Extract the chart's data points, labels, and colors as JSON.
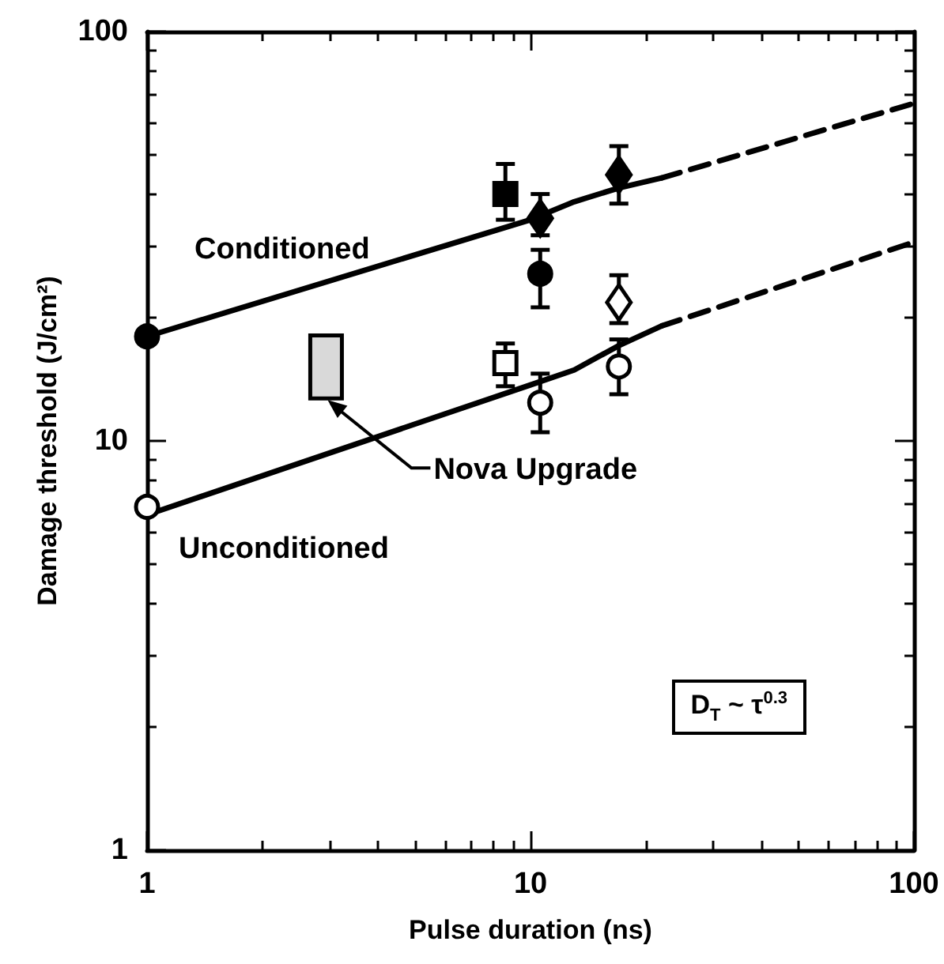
{
  "chart_data": {
    "type": "scatter",
    "xlabel": "Pulse duration (ns)",
    "ylabel": "Damage threshold (J/cm²)",
    "xlim": [
      1,
      100
    ],
    "ylim": [
      1,
      100
    ],
    "xticks": [
      1,
      10,
      100
    ],
    "yticks": [
      1,
      10,
      100
    ],
    "log": "xy",
    "annotations": [
      {
        "text": "Nova Upgrade",
        "x": 2.93,
        "y": 12.7
      },
      "D$_{T}$ ~ τ$^{0.3}$"
    ],
    "series": [
      {
        "name": "Conditioned",
        "type": "line",
        "line_style": "solid",
        "color": "#000000",
        "x": [
          1,
          10,
          13,
          17,
          22
        ],
        "values": [
          18,
          34.7,
          38.4,
          41.5,
          43.9
        ]
      },
      {
        "type": "line",
        "line_style": "dashed",
        "color": "#000000",
        "x": [
          22,
          100
        ],
        "values": [
          43.9,
          66.8
        ]
      },
      {
        "name": "Unconditioned",
        "type": "line",
        "line_style": "solid",
        "color": "#000000",
        "x": [
          1,
          10,
          13,
          17,
          22
        ],
        "values": [
          6.6,
          13.7,
          14.9,
          17.1,
          19.1
        ]
      },
      {
        "type": "line",
        "line_style": "dashed",
        "color": "#000000",
        "x": [
          22,
          100
        ],
        "values": [
          19.1,
          30.6
        ]
      },
      {
        "marker": "circle",
        "color": "#000000",
        "x": [
          1,
          10.6
        ],
        "values": [
          18,
          25.6
        ],
        "errors": [
          null,
          [
            21.2,
            29.3
          ]
        ]
      },
      {
        "marker": "square",
        "color": "#000000",
        "x": [
          8.6
        ],
        "values": [
          40.1
        ],
        "errors": [
          [
            34.7,
            47.5
          ]
        ]
      },
      {
        "marker": "diamond",
        "color": "#000000",
        "x": [
          10.6,
          17
        ],
        "values": [
          35,
          44.7
        ],
        "errors": [
          [
            31.8,
            40.1
          ],
          [
            38,
            52.5
          ]
        ]
      },
      {
        "marker": "circle",
        "color": "#ffffff",
        "x": [
          1,
          10.6,
          17
        ],
        "values": [
          6.9,
          12.4,
          15.2
        ],
        "errors": [
          null,
          [
            10.5,
            14.6
          ],
          [
            13,
            17.7
          ]
        ]
      },
      {
        "marker": "square",
        "color": "#ffffff",
        "x": [
          8.6
        ],
        "values": [
          15.5
        ],
        "errors": [
          [
            13.6,
            17.3
          ]
        ]
      },
      {
        "marker": "diamond",
        "color": "#ffffff",
        "x": [
          17
        ],
        "values": [
          21.8
        ],
        "errors": [
          [
            19.4,
            25.4
          ]
        ]
      },
      {
        "type": "bar",
        "color": "#d9d9d9",
        "x": [
          2.93
        ],
        "base": [
          12.7
        ],
        "values": [
          5.4
        ]
      }
    ]
  }
}
